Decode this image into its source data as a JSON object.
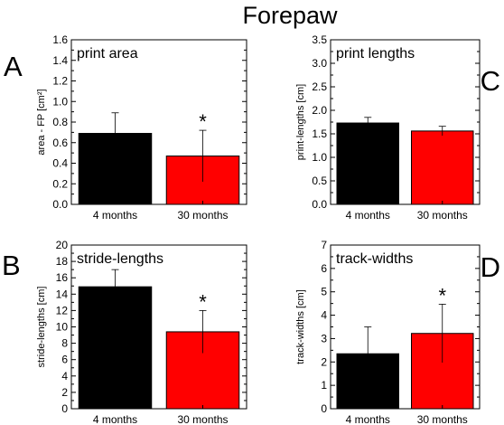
{
  "figure_title": "Forepaw",
  "chart_data": [
    {
      "type": "bar",
      "panel_letter": "A",
      "title": "print area",
      "ylabel": "area - FP [cm²]",
      "categories": [
        "4 months",
        "30 months"
      ],
      "values": [
        0.69,
        0.47
      ],
      "errors": [
        0.2,
        0.25
      ],
      "colors": [
        "#000000",
        "#ff0000"
      ],
      "significance": [
        "",
        "*"
      ],
      "ylim": [
        0,
        1.6
      ],
      "yticks": [
        "0.0",
        "0.2",
        "0.4",
        "0.6",
        "0.8",
        "1.0",
        "1.2",
        "1.4",
        "1.6"
      ]
    },
    {
      "type": "bar",
      "panel_letter": "C",
      "title": "print lengths",
      "ylabel": "print-lengths [cm]",
      "categories": [
        "4 months",
        "30 months"
      ],
      "values": [
        1.73,
        1.56
      ],
      "errors": [
        0.12,
        0.1
      ],
      "colors": [
        "#000000",
        "#ff0000"
      ],
      "significance": [
        "",
        ""
      ],
      "ylim": [
        0,
        3.5
      ],
      "yticks": [
        "0.0",
        "0.5",
        "1.0",
        "1.5",
        "2.0",
        "2.5",
        "3.0",
        "3.5"
      ]
    },
    {
      "type": "bar",
      "panel_letter": "B",
      "title": "stride-lengths",
      "ylabel": "stride-lengths [cm]",
      "categories": [
        "4 months",
        "30 months"
      ],
      "values": [
        14.9,
        9.4
      ],
      "errors": [
        2.1,
        2.6
      ],
      "colors": [
        "#000000",
        "#ff0000"
      ],
      "significance": [
        "",
        "*"
      ],
      "ylim": [
        0,
        20
      ],
      "yticks": [
        "0",
        "2",
        "4",
        "6",
        "8",
        "10",
        "12",
        "14",
        "16",
        "18",
        "20"
      ]
    },
    {
      "type": "bar",
      "panel_letter": "D",
      "title": "track-widths",
      "ylabel": "track-widths [cm]",
      "categories": [
        "4 months",
        "30 months"
      ],
      "values": [
        2.35,
        3.22
      ],
      "errors": [
        1.15,
        1.25
      ],
      "colors": [
        "#000000",
        "#ff0000"
      ],
      "significance": [
        "",
        "*"
      ],
      "ylim": [
        0,
        7
      ],
      "yticks": [
        "0",
        "1",
        "2",
        "3",
        "4",
        "5",
        "6",
        "7"
      ]
    }
  ]
}
